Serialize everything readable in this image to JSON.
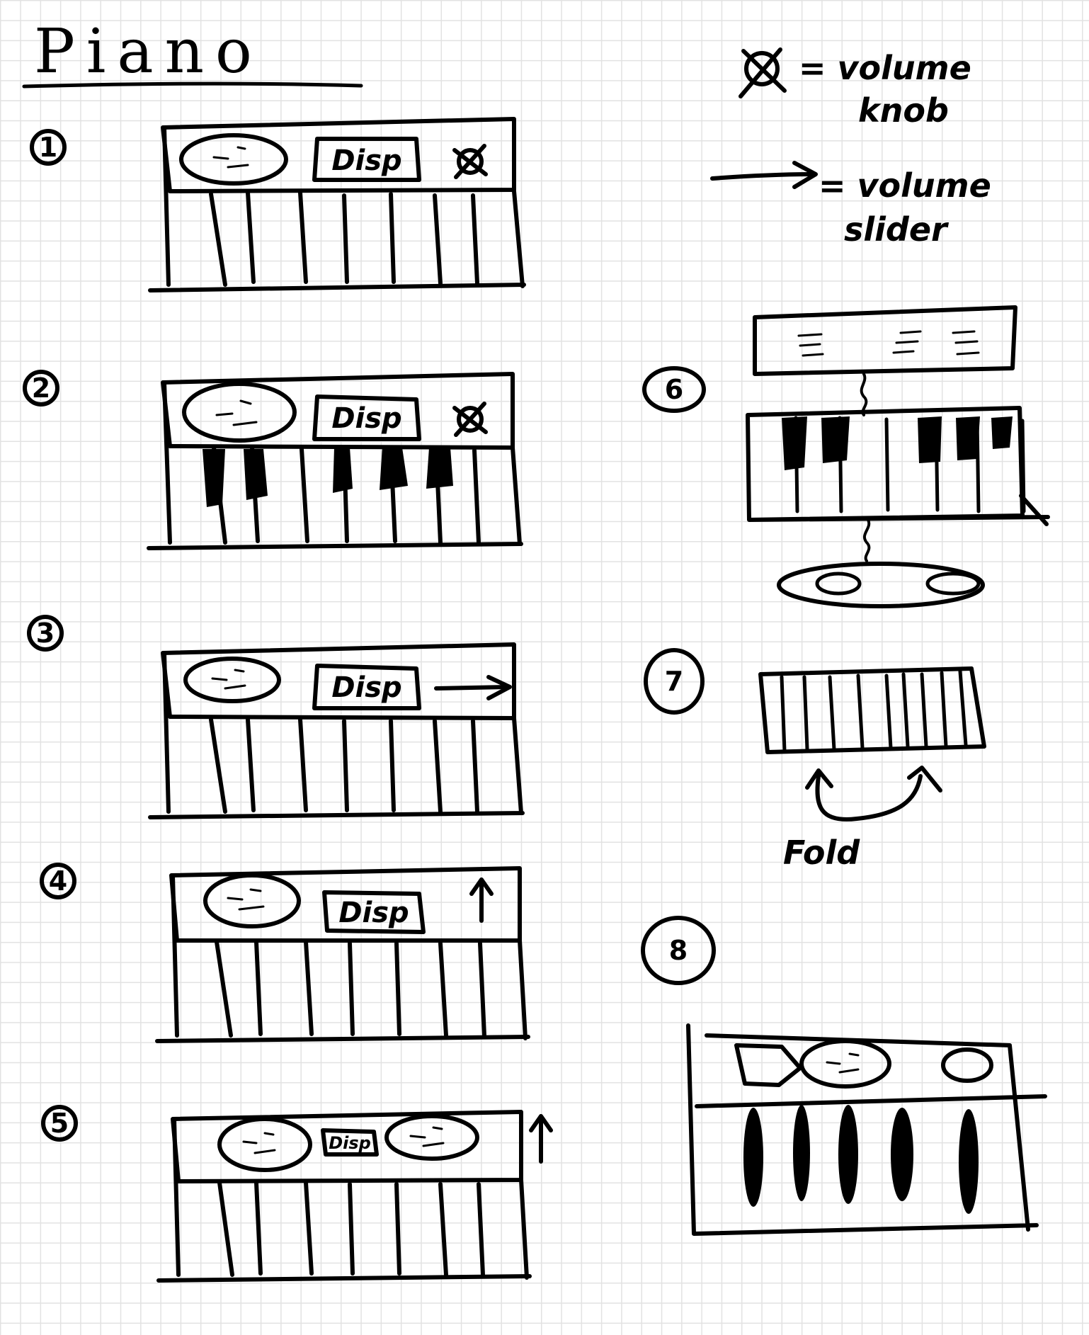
{
  "title": "Piano",
  "legend": {
    "knob_line1": "= volume",
    "knob_line2": "knob",
    "slider_line1": "= volume",
    "slider_line2": "slider"
  },
  "sketches": [
    {
      "number": "1",
      "display": "Disp"
    },
    {
      "number": "2",
      "display": "Disp"
    },
    {
      "number": "3",
      "display": "Disp"
    },
    {
      "number": "4",
      "display": "Disp"
    },
    {
      "number": "5",
      "display": "Disp"
    },
    {
      "number": "6"
    },
    {
      "number": "7",
      "note": "Fold"
    },
    {
      "number": "8"
    }
  ]
}
